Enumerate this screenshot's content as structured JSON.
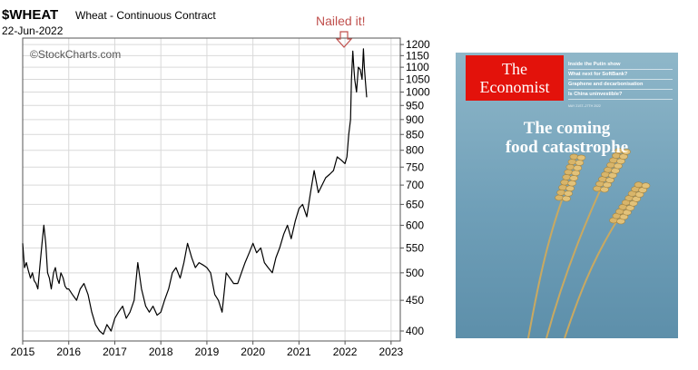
{
  "chart_data": {
    "type": "line",
    "title": "$WHEAT",
    "subtitle": "Wheat - Continuous Contract",
    "date": "22-Jun-2022",
    "watermark": "©StockCharts.com",
    "annotation": "Nailed it!",
    "y_scale": "log",
    "ylim": [
      385,
      1230
    ],
    "xlim": [
      2015,
      2023.2
    ],
    "grid": true,
    "x_ticks": [
      "2015",
      "2016",
      "2017",
      "2018",
      "2019",
      "2020",
      "2021",
      "2022",
      "2023"
    ],
    "y_ticks": [
      400,
      450,
      500,
      550,
      600,
      650,
      700,
      750,
      800,
      850,
      900,
      950,
      1000,
      1050,
      1100,
      1150,
      1200
    ],
    "colors": {
      "line": "#000000",
      "annotation": "#c0504d",
      "grid": "#d9d9d9"
    },
    "series": [
      {
        "x": [
          2015.0,
          2015.04,
          2015.08,
          2015.12,
          2015.17,
          2015.21,
          2015.25,
          2015.29,
          2015.33,
          2015.38,
          2015.42,
          2015.46,
          2015.5,
          2015.54,
          2015.58,
          2015.62,
          2015.67,
          2015.71,
          2015.75,
          2015.79,
          2015.83,
          2015.88,
          2015.92,
          2015.96,
          2016.0,
          2016.08,
          2016.17,
          2016.25,
          2016.33,
          2016.42,
          2016.5,
          2016.58,
          2016.67,
          2016.75,
          2016.83,
          2016.92,
          2017.0,
          2017.08,
          2017.17,
          2017.25,
          2017.33,
          2017.42,
          2017.5,
          2017.58,
          2017.67,
          2017.75,
          2017.83,
          2017.92,
          2018.0,
          2018.08,
          2018.17,
          2018.25,
          2018.33,
          2018.42,
          2018.5,
          2018.58,
          2018.67,
          2018.75,
          2018.83,
          2018.92,
          2019.0,
          2019.08,
          2019.17,
          2019.25,
          2019.33,
          2019.42,
          2019.5,
          2019.58,
          2019.67,
          2019.75,
          2019.83,
          2019.92,
          2020.0,
          2020.08,
          2020.17,
          2020.25,
          2020.33,
          2020.42,
          2020.5,
          2020.58,
          2020.67,
          2020.75,
          2020.83,
          2020.92,
          2021.0,
          2021.08,
          2021.17,
          2021.25,
          2021.33,
          2021.42,
          2021.5,
          2021.58,
          2021.67,
          2021.75,
          2021.83,
          2021.92,
          2022.0,
          2022.04,
          2022.08,
          2022.12,
          2022.14,
          2022.17,
          2022.19,
          2022.21,
          2022.25,
          2022.29,
          2022.33,
          2022.37,
          2022.4,
          2022.42,
          2022.44,
          2022.47
        ],
        "y": [
          560,
          510,
          520,
          505,
          490,
          500,
          485,
          480,
          470,
          520,
          560,
          600,
          560,
          500,
          490,
          470,
          500,
          510,
          490,
          480,
          500,
          490,
          475,
          470,
          470,
          460,
          450,
          470,
          480,
          460,
          430,
          410,
          400,
          395,
          410,
          400,
          420,
          430,
          440,
          420,
          430,
          450,
          520,
          470,
          440,
          430,
          440,
          425,
          430,
          450,
          470,
          500,
          510,
          490,
          520,
          560,
          530,
          510,
          520,
          515,
          510,
          500,
          460,
          450,
          430,
          500,
          490,
          480,
          480,
          500,
          520,
          540,
          560,
          540,
          550,
          520,
          510,
          500,
          530,
          550,
          580,
          600,
          570,
          610,
          640,
          650,
          620,
          680,
          740,
          680,
          700,
          720,
          730,
          740,
          780,
          770,
          760,
          780,
          850,
          900,
          1050,
          1170,
          1100,
          1050,
          1000,
          1100,
          1090,
          1050,
          1180,
          1100,
          1050,
          980
        ]
      }
    ]
  },
  "cover": {
    "logo_line1": "The",
    "logo_line2": "Economist",
    "teasers": [
      "Inside the Putin show",
      "What next for SoftBank?",
      "Graphene and decarbonisation",
      "Is China uninvestible?"
    ],
    "date_line": "MAY 21ST–27TH 2022",
    "headline_line1": "The coming",
    "headline_line2": "food catastrophe"
  }
}
